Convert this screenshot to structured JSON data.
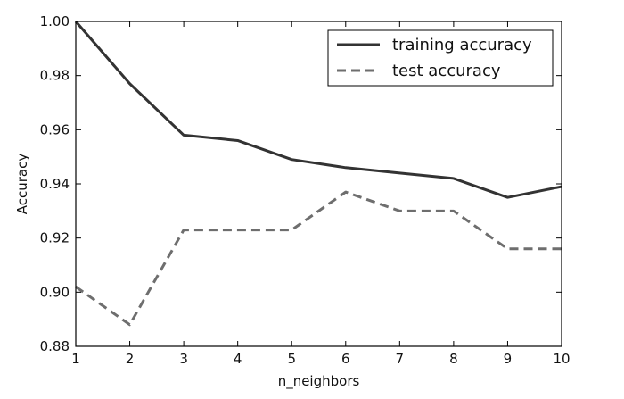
{
  "chart_data": {
    "type": "line",
    "title": "",
    "xlabel": "n_neighbors",
    "ylabel": "Accuracy",
    "xlim": [
      1,
      10
    ],
    "ylim": [
      0.88,
      1.0
    ],
    "x": [
      1,
      2,
      3,
      4,
      5,
      6,
      7,
      8,
      9,
      10
    ],
    "x_ticks": [
      "1",
      "2",
      "3",
      "4",
      "5",
      "6",
      "7",
      "8",
      "9",
      "10"
    ],
    "y_ticks": [
      "0.88",
      "0.90",
      "0.92",
      "0.94",
      "0.96",
      "0.98",
      "1.00"
    ],
    "grid": false,
    "legend_position": "top-right",
    "series": [
      {
        "name": "training accuracy",
        "style": "solid",
        "color": "#333333",
        "values": [
          1.0,
          0.977,
          0.958,
          0.956,
          0.949,
          0.946,
          0.944,
          0.942,
          0.935,
          0.939
        ]
      },
      {
        "name": "test accuracy",
        "style": "dashed",
        "color": "#6e6e6e",
        "values": [
          0.902,
          0.888,
          0.923,
          0.923,
          0.923,
          0.937,
          0.93,
          0.93,
          0.916,
          0.916
        ]
      }
    ]
  }
}
